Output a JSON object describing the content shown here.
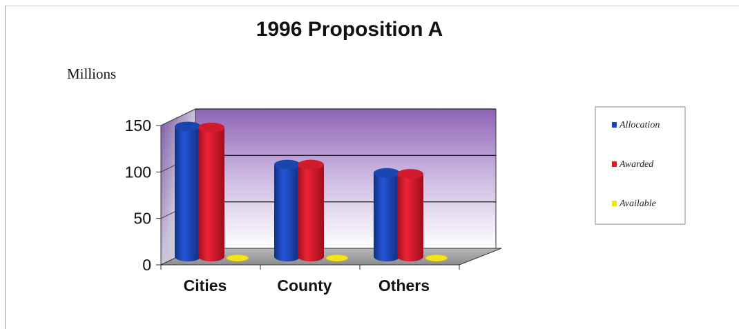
{
  "chart_data": {
    "type": "bar",
    "title": "1996 Proposition A",
    "ylabel": "Millions",
    "xlabel": "",
    "categories": [
      "Cities",
      "County",
      "Others"
    ],
    "series": [
      {
        "name": "Allocation",
        "color": "#1a44b0",
        "values": [
          140,
          99,
          90
        ]
      },
      {
        "name": "Awarded",
        "color": "#d11a2e",
        "values": [
          139,
          99,
          89
        ]
      },
      {
        "name": "Available",
        "color": "#f2e21a",
        "values": [
          1,
          0,
          1
        ]
      }
    ],
    "yticks": [
      0,
      50,
      100,
      150
    ],
    "ylim": [
      0,
      150
    ],
    "grid": true,
    "legend_position": "right",
    "style": "3d-cylinder"
  }
}
